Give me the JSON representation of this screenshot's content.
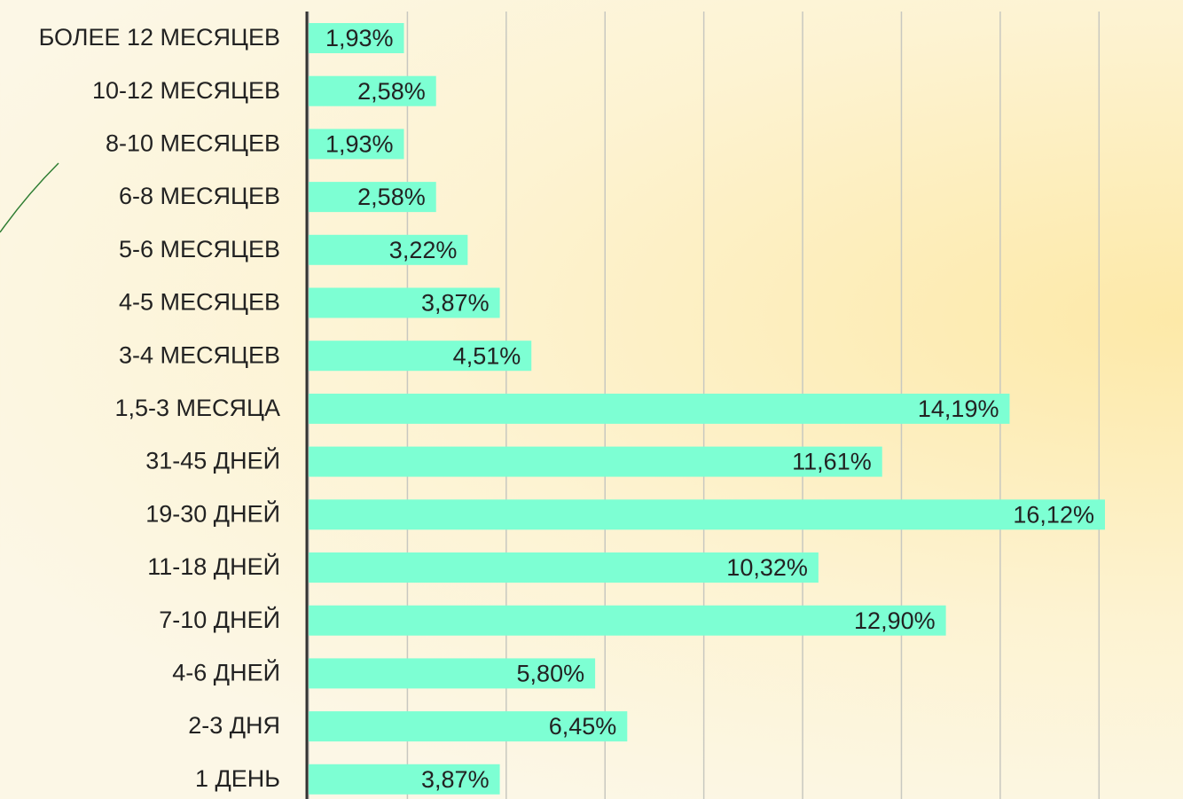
{
  "chart_data": {
    "type": "barh",
    "categories": [
      "БОЛЕЕ 12 МЕСЯЦЕВ",
      "10-12 МЕСЯЦЕВ",
      "8-10 МЕСЯЦЕВ",
      "6-8 МЕСЯЦЕВ",
      "5-6 МЕСЯЦЕВ",
      "4-5 МЕСЯЦЕВ",
      "3-4 МЕСЯЦЕВ",
      "1,5-3 МЕСЯЦА",
      "31-45 ДНЕЙ",
      "19-30 ДНЕЙ",
      "11-18 ДНЕЙ",
      "7-10 ДНЕЙ",
      "4-6 ДНЕЙ",
      "2-3 ДНЯ",
      "1 ДЕНЬ"
    ],
    "values": [
      1.93,
      2.58,
      1.93,
      2.58,
      3.22,
      3.87,
      4.51,
      14.19,
      11.61,
      16.12,
      10.32,
      12.9,
      5.8,
      6.45,
      3.87
    ],
    "value_labels": [
      "1,93%",
      "2,58%",
      "1,93%",
      "2,58%",
      "3,22%",
      "3,87%",
      "4,51%",
      "14,19%",
      "11,61%",
      "16,12%",
      "10,32%",
      "12,90%",
      "5,80%",
      "6,45%",
      "3,87%"
    ],
    "color": "#7dffd3",
    "xlim": [
      0,
      17.7
    ],
    "xticks": [
      0,
      2,
      4,
      6,
      8,
      10,
      12,
      14,
      16
    ],
    "grid": true
  }
}
